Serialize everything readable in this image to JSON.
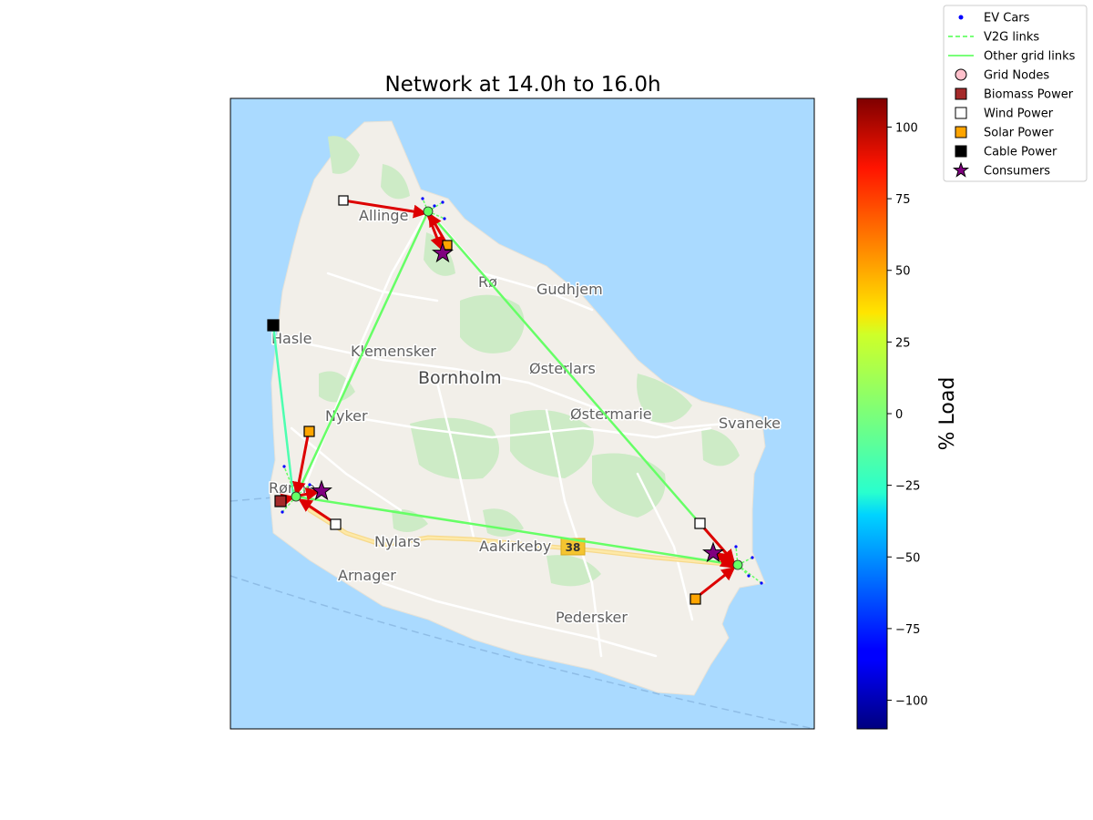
{
  "title": "Network at 14.0h to 16.0h",
  "colorbar": {
    "label": "% Load",
    "min": -110,
    "max": 110,
    "ticks": [
      100,
      75,
      50,
      25,
      0,
      -25,
      -50,
      -75,
      -100
    ],
    "tick_labels": [
      "100",
      "75",
      "50",
      "25",
      "0",
      "−25",
      "−50",
      "−75",
      "−100"
    ],
    "colormap": "jet"
  },
  "legend": {
    "placement": "top-right",
    "items": [
      {
        "label": "EV Cars",
        "marker": "dot",
        "color": "#0000ff"
      },
      {
        "label": "V2G links",
        "marker": "dashed-line",
        "color": "#66ff66"
      },
      {
        "label": "Other grid links",
        "marker": "line",
        "color": "#66ff66"
      },
      {
        "label": "Grid Nodes",
        "marker": "circle",
        "color": "#ffc0cb"
      },
      {
        "label": "Biomass Power",
        "marker": "square",
        "color": "#a52a2a"
      },
      {
        "label": "Wind Power",
        "marker": "square",
        "color": "#ffffff"
      },
      {
        "label": "Solar Power",
        "marker": "square",
        "color": "#ffa500"
      },
      {
        "label": "Cable Power",
        "marker": "square",
        "color": "#000000"
      },
      {
        "label": "Consumers",
        "marker": "star",
        "color": "#800080"
      }
    ]
  },
  "map": {
    "place_labels": [
      "Allinge",
      "Rø",
      "Gudhjem",
      "Hasle",
      "Klemensker",
      "Bornholm",
      "Østerlars",
      "Nyker",
      "Østermarie",
      "Svaneke",
      "Rønne",
      "Nylars",
      "Aakirkeby",
      "Arnager",
      "Pedersker"
    ],
    "road_number": "38",
    "colors": {
      "sea": "#aadaff",
      "land": "#f2efe9",
      "forest": "#cdebc6",
      "road": "#ffffff",
      "highway": "#fde293"
    }
  }
}
